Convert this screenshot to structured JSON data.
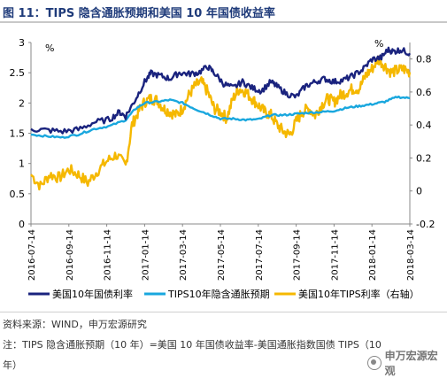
{
  "figure": {
    "title": "图 11：TIPS 隐含通胀预期和美国 10 年国债收益率"
  },
  "chart_data": {
    "type": "line",
    "x_tick_labels": [
      "2016-07-14",
      "2016-09-14",
      "2016-11-14",
      "2017-01-14",
      "2017-03-14",
      "2017-05-14",
      "2017-07-14",
      "2017-09-14",
      "2017-11-14",
      "2018-01-14",
      "2018-03-14"
    ],
    "y_left": {
      "unit": "%",
      "min": 0,
      "max": 3,
      "ticks": [
        "0",
        "0.5",
        "1",
        "1.5",
        "2",
        "2.5",
        "3"
      ]
    },
    "y_right": {
      "unit": "%",
      "min": -0.2,
      "max": 0.9,
      "ticks": [
        "-0.2",
        "0",
        "0.2",
        "0.4",
        "0.6",
        "0.8"
      ]
    },
    "grid": false,
    "legend_position": "bottom",
    "series": [
      {
        "name": "美国10年国债利率",
        "color": "#1a237e",
        "axis": "left",
        "anchors": [
          [
            0,
            1.57
          ],
          [
            5,
            1.55
          ],
          [
            10,
            1.53
          ],
          [
            15,
            1.56
          ],
          [
            20,
            1.68
          ],
          [
            25,
            1.73
          ],
          [
            28,
            1.85
          ],
          [
            30,
            1.78
          ],
          [
            33,
            2.05
          ],
          [
            36,
            2.35
          ],
          [
            38,
            2.49
          ],
          [
            41,
            2.45
          ],
          [
            44,
            2.4
          ],
          [
            47,
            2.5
          ],
          [
            50,
            2.48
          ],
          [
            53,
            2.5
          ],
          [
            56,
            2.6
          ],
          [
            58,
            2.5
          ],
          [
            61,
            2.32
          ],
          [
            64,
            2.25
          ],
          [
            67,
            2.35
          ],
          [
            70,
            2.25
          ],
          [
            73,
            2.2
          ],
          [
            76,
            2.35
          ],
          [
            78,
            2.27
          ],
          [
            81,
            2.15
          ],
          [
            84,
            2.1
          ],
          [
            87,
            2.28
          ],
          [
            90,
            2.35
          ],
          [
            93,
            2.4
          ],
          [
            96,
            2.35
          ],
          [
            99,
            2.38
          ],
          [
            102,
            2.45
          ],
          [
            105,
            2.55
          ],
          [
            108,
            2.72
          ],
          [
            111,
            2.75
          ],
          [
            113,
            2.88
          ],
          [
            115,
            2.85
          ],
          [
            117,
            2.88
          ],
          [
            120,
            2.82
          ]
        ],
        "amplitude": 0.05
      },
      {
        "name": "TIPS10年隐含通胀预期",
        "color": "#19a7de",
        "axis": "left",
        "anchors": [
          [
            0,
            1.48
          ],
          [
            5,
            1.45
          ],
          [
            10,
            1.43
          ],
          [
            15,
            1.48
          ],
          [
            20,
            1.57
          ],
          [
            25,
            1.62
          ],
          [
            30,
            1.72
          ],
          [
            33,
            1.9
          ],
          [
            36,
            2.0
          ],
          [
            40,
            2.02
          ],
          [
            44,
            2.05
          ],
          [
            48,
            2.0
          ],
          [
            52,
            1.9
          ],
          [
            56,
            1.82
          ],
          [
            60,
            1.74
          ],
          [
            64,
            1.74
          ],
          [
            68,
            1.72
          ],
          [
            72,
            1.73
          ],
          [
            76,
            1.8
          ],
          [
            80,
            1.8
          ],
          [
            84,
            1.82
          ],
          [
            88,
            1.84
          ],
          [
            92,
            1.85
          ],
          [
            96,
            1.87
          ],
          [
            100,
            1.92
          ],
          [
            104,
            1.95
          ],
          [
            108,
            1.98
          ],
          [
            112,
            2.02
          ],
          [
            116,
            2.1
          ],
          [
            120,
            2.08
          ]
        ],
        "amplitude": 0.015
      },
      {
        "name": "美国10年TIPS利率（右轴）",
        "color": "#f5b800",
        "axis": "right",
        "anchors": [
          [
            0,
            0.1
          ],
          [
            3,
            0.03
          ],
          [
            6,
            0.1
          ],
          [
            9,
            0.08
          ],
          [
            12,
            0.13
          ],
          [
            15,
            0.1
          ],
          [
            18,
            0.05
          ],
          [
            21,
            0.12
          ],
          [
            24,
            0.18
          ],
          [
            27,
            0.22
          ],
          [
            30,
            0.15
          ],
          [
            32,
            0.4
          ],
          [
            34,
            0.48
          ],
          [
            36,
            0.54
          ],
          [
            38,
            0.56
          ],
          [
            40,
            0.55
          ],
          [
            42,
            0.5
          ],
          [
            44,
            0.48
          ],
          [
            46,
            0.46
          ],
          [
            48,
            0.5
          ],
          [
            50,
            0.58
          ],
          [
            52,
            0.64
          ],
          [
            54,
            0.66
          ],
          [
            56,
            0.6
          ],
          [
            58,
            0.5
          ],
          [
            60,
            0.48
          ],
          [
            62,
            0.44
          ],
          [
            64,
            0.56
          ],
          [
            66,
            0.62
          ],
          [
            68,
            0.6
          ],
          [
            70,
            0.56
          ],
          [
            72,
            0.52
          ],
          [
            74,
            0.48
          ],
          [
            76,
            0.46
          ],
          [
            78,
            0.4
          ],
          [
            80,
            0.36
          ],
          [
            82,
            0.34
          ],
          [
            84,
            0.42
          ],
          [
            86,
            0.48
          ],
          [
            88,
            0.5
          ],
          [
            90,
            0.46
          ],
          [
            92,
            0.52
          ],
          [
            94,
            0.56
          ],
          [
            96,
            0.54
          ],
          [
            98,
            0.58
          ],
          [
            100,
            0.6
          ],
          [
            102,
            0.62
          ],
          [
            104,
            0.62
          ],
          [
            106,
            0.7
          ],
          [
            108,
            0.74
          ],
          [
            110,
            0.8
          ],
          [
            112,
            0.76
          ],
          [
            114,
            0.72
          ],
          [
            116,
            0.73
          ],
          [
            118,
            0.74
          ],
          [
            120,
            0.72
          ]
        ],
        "amplitude": 0.035
      }
    ]
  },
  "footer": {
    "source": "资料来源：WIND，申万宏源研究",
    "note": "注：TIPS 隐含通胀预期（10 年）=美国 10 年国债收益率-美国通胀指数国债 TIPS（10",
    "note_cont": "年）",
    "watermark": "申万宏源宏观"
  }
}
